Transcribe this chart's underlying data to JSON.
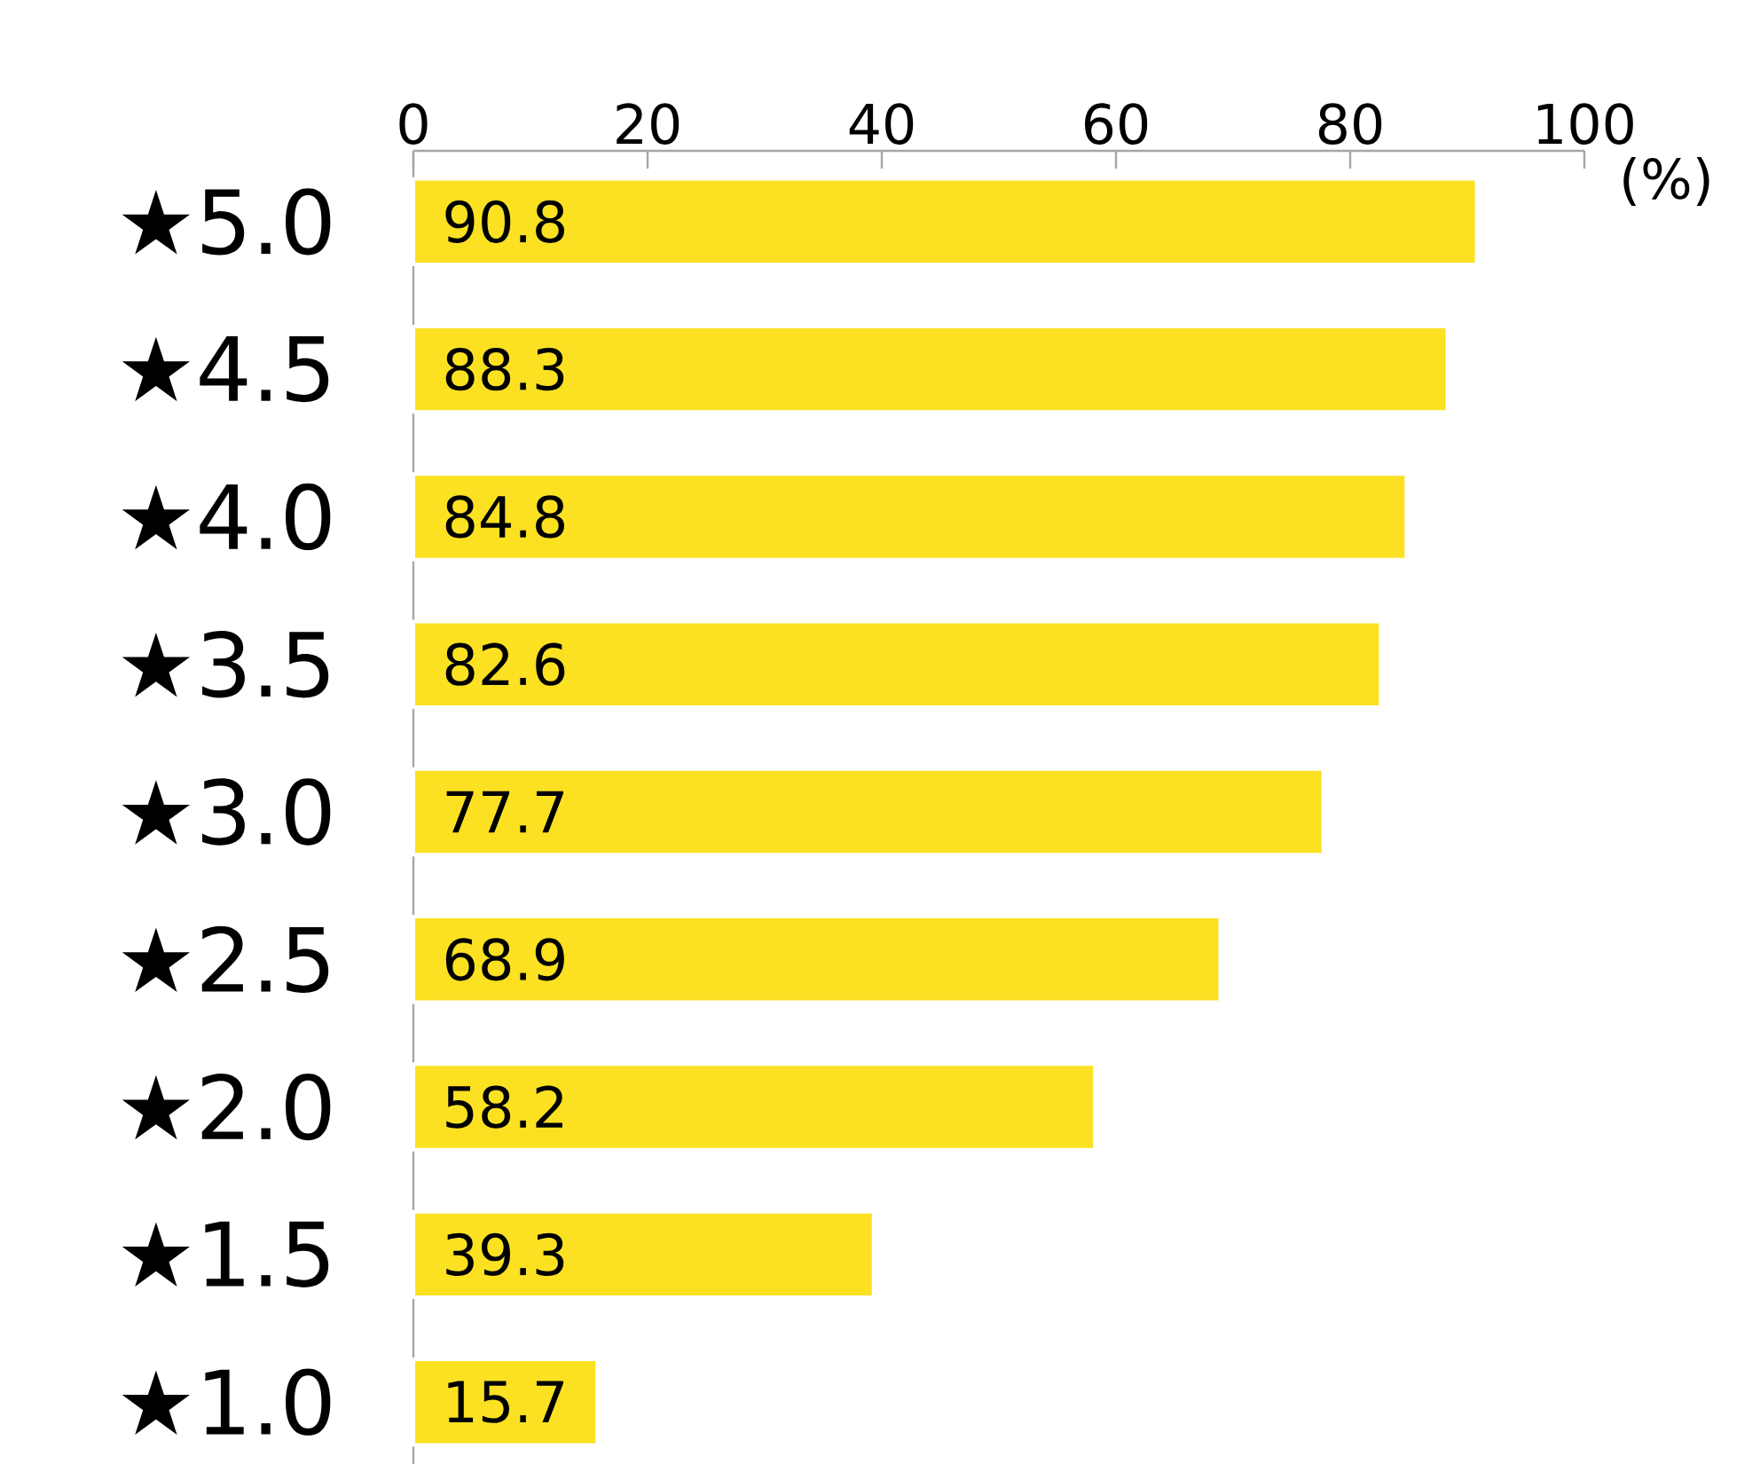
{
  "chart_data": {
    "type": "bar",
    "orientation": "horizontal",
    "xlabel": "(%)",
    "categories": [
      "★5.0",
      "★4.5",
      "★4.0",
      "★3.5",
      "★3.0",
      "★2.5",
      "★2.0",
      "★1.5",
      "★1.0"
    ],
    "values": [
      90.8,
      88.3,
      84.8,
      82.6,
      77.7,
      68.9,
      58.2,
      39.3,
      15.7
    ],
    "color": "#fbe122",
    "xlim": [
      0,
      100
    ],
    "xticks": [
      0,
      20,
      40,
      60,
      80,
      100
    ],
    "data_labels": true
  }
}
